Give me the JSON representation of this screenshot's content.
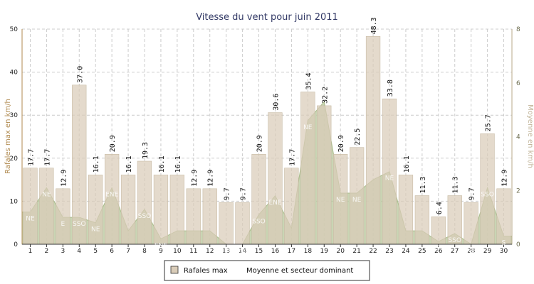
{
  "chart_data": {
    "type": "bar",
    "title": "Vitesse du vent pour juin 2011",
    "ylabel_left": "Rafales max en km/h",
    "ylabel_right": "Moyenne en km/h",
    "ylim_left": [
      0,
      50
    ],
    "yticks_left": [
      0,
      10,
      20,
      30,
      40,
      50
    ],
    "ylim_right": [
      0,
      8
    ],
    "yticks_right": [
      0,
      2,
      4,
      6,
      8
    ],
    "grid": true,
    "legend_position": "bottom",
    "categories": [
      "1",
      "2",
      "3",
      "4",
      "5",
      "6",
      "7",
      "8",
      "9",
      "10",
      "11",
      "12",
      "13",
      "14",
      "15",
      "16",
      "17",
      "18",
      "19",
      "20",
      "21",
      "22",
      "23",
      "24",
      "25",
      "26",
      "27",
      "28",
      "29",
      "30"
    ],
    "series": [
      {
        "name": "Rafales max",
        "axis": "left",
        "type": "bar",
        "color": "#d9ccb8",
        "values": [
          17.7,
          17.7,
          12.9,
          37.0,
          16.1,
          20.9,
          16.1,
          19.3,
          16.1,
          16.1,
          12.9,
          12.9,
          9.7,
          9.7,
          20.9,
          30.6,
          17.7,
          35.4,
          32.2,
          20.9,
          22.5,
          48.3,
          33.8,
          16.1,
          11.3,
          6.4,
          11.3,
          9.7,
          25.7,
          12.9
        ],
        "labels": [
          "17.7",
          "17.7",
          "12.9",
          "37.0",
          "16.1",
          "20.9",
          "16.1",
          "19.3",
          "16.1",
          "16.1",
          "12.9",
          "12.9",
          "9.7",
          "9.7",
          "20.9",
          "30.6",
          "17.7",
          "35.4",
          "32.2",
          "20.9",
          "22.5",
          "48.3",
          "33.8",
          "16.1",
          "11.3",
          "6.4",
          "11.3",
          "9.7",
          "25.7",
          "12.9"
        ]
      },
      {
        "name": "Moyenne et secteur dominant",
        "axis": "right",
        "type": "area",
        "color": "#b7c79b",
        "values": [
          1.2,
          2.1,
          1.0,
          1.0,
          0.8,
          2.1,
          0.5,
          1.3,
          0.2,
          0.5,
          0.5,
          0.5,
          0.0,
          0.0,
          1.1,
          1.8,
          0.6,
          4.6,
          5.3,
          1.9,
          1.9,
          2.4,
          2.7,
          0.5,
          0.5,
          0.1,
          0.4,
          0.0,
          2.1,
          0.3
        ],
        "sectors": [
          "NE",
          "NE",
          "E",
          "SSO",
          "NE",
          "ENE",
          "",
          "SSO",
          "ENE",
          "",
          "",
          "",
          "SSE",
          "SSO",
          "SSO",
          "ENE",
          "",
          "NE",
          "",
          "NE",
          "NE",
          "",
          "NE",
          "",
          "",
          "SSO",
          "SSO",
          "NE",
          "SSO",
          "S"
        ]
      }
    ]
  }
}
